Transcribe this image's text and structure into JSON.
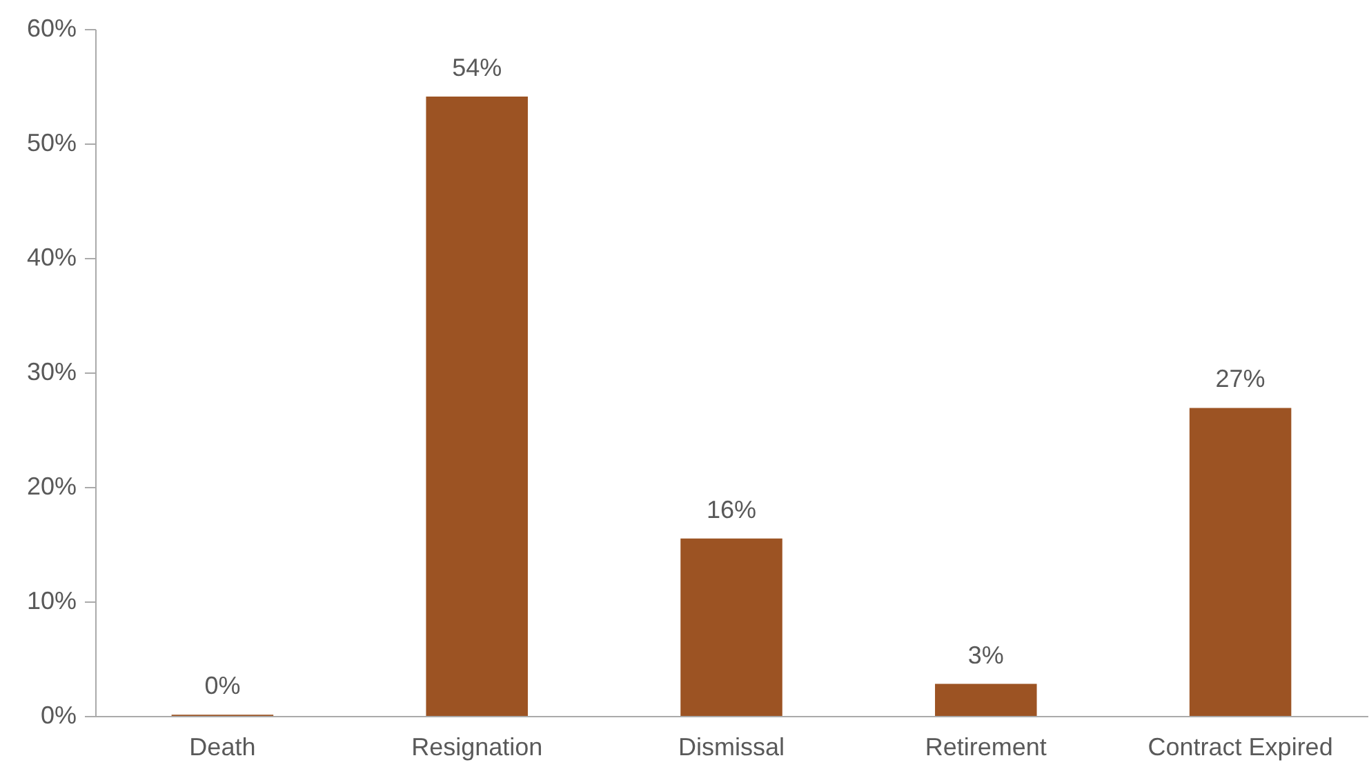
{
  "chart_data": {
    "type": "bar",
    "categories": [
      "Death",
      "Resignation",
      "Dismissal",
      "Retirement",
      "Contract Expired"
    ],
    "values": [
      0.1,
      54.1,
      15.5,
      2.8,
      26.9
    ],
    "value_labels": [
      "0%",
      "54%",
      "16%",
      "3%",
      "27%"
    ],
    "color": "#9c5323",
    "ylim": [
      0,
      60
    ],
    "yticks": [
      {
        "value": 0,
        "label": "0%"
      },
      {
        "value": 10,
        "label": "10%"
      },
      {
        "value": 20,
        "label": "20%"
      },
      {
        "value": 30,
        "label": "30%"
      },
      {
        "value": 40,
        "label": "40%"
      },
      {
        "value": 50,
        "label": "50%"
      },
      {
        "value": 60,
        "label": "60%"
      }
    ],
    "grid": false
  }
}
